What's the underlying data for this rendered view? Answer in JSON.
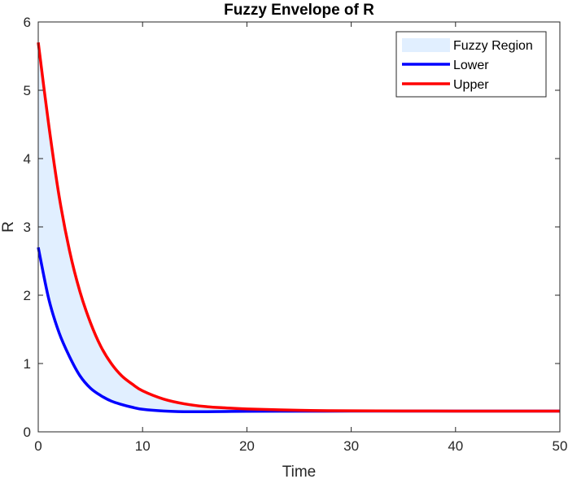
{
  "chart_data": {
    "type": "area",
    "title": "Fuzzy Envelope of R",
    "xlabel": "Time",
    "ylabel": "R",
    "xlim": [
      0,
      50
    ],
    "ylim": [
      0,
      6
    ],
    "xticks": [
      "0",
      "10",
      "20",
      "30",
      "40",
      "50"
    ],
    "yticks": [
      "0",
      "1",
      "2",
      "3",
      "4",
      "5",
      "6"
    ],
    "grid": false,
    "legend_position": "top-right",
    "legend": [
      "Fuzzy Region",
      "Lower",
      "Upper"
    ],
    "x": [
      0,
      1,
      2,
      3,
      4,
      5,
      6,
      7,
      8,
      9,
      10,
      12,
      14,
      16,
      18,
      20,
      25,
      30,
      35,
      40,
      45,
      50
    ],
    "series": [
      {
        "name": "Lower",
        "color": "#0000ff",
        "values": [
          2.7,
          1.95,
          1.45,
          1.1,
          0.82,
          0.64,
          0.53,
          0.45,
          0.4,
          0.36,
          0.33,
          0.305,
          0.295,
          0.295,
          0.298,
          0.3,
          0.302,
          0.303,
          0.303,
          0.303,
          0.303,
          0.303
        ]
      },
      {
        "name": "Upper",
        "color": "#ff0000",
        "values": [
          5.7,
          4.5,
          3.45,
          2.65,
          2.05,
          1.6,
          1.25,
          1.0,
          0.82,
          0.7,
          0.6,
          0.48,
          0.41,
          0.37,
          0.35,
          0.335,
          0.315,
          0.308,
          0.305,
          0.304,
          0.303,
          0.303
        ]
      }
    ],
    "fill": {
      "name": "Fuzzy Region",
      "color": "#e1efff",
      "between": [
        "Lower",
        "Upper"
      ]
    }
  }
}
